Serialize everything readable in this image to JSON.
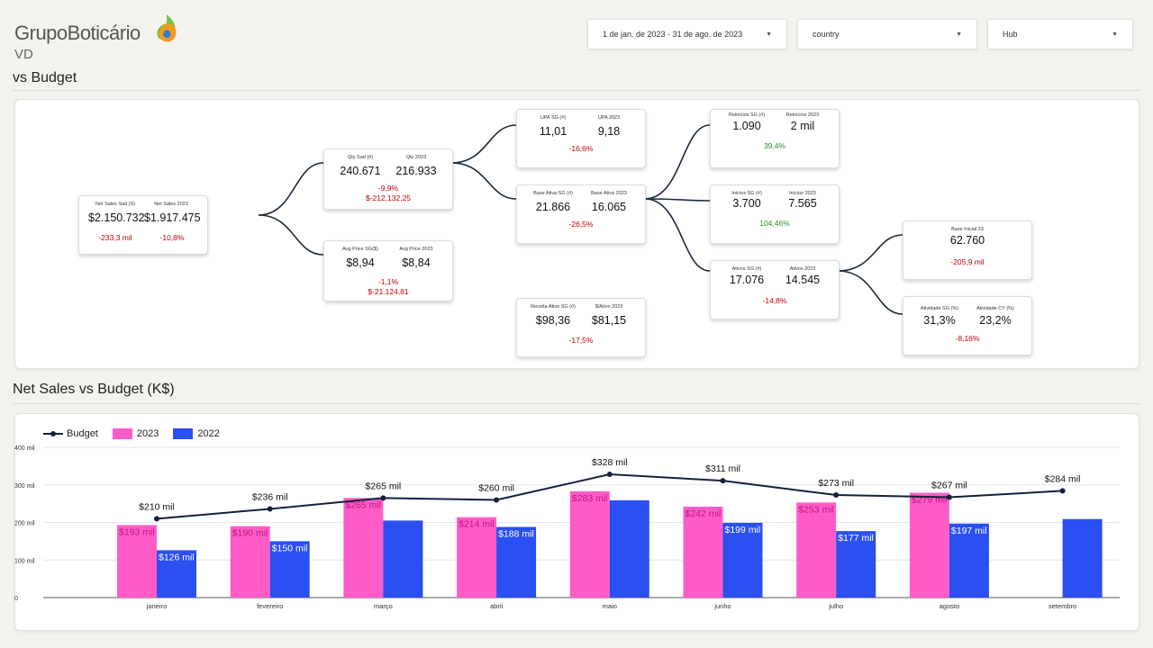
{
  "header": {
    "logo_text": "GrupoBoticário",
    "subtitle": "VD"
  },
  "filters": [
    {
      "label": "1 de jan. de 2023 - 31 de ago. de 2023"
    },
    {
      "label": "country"
    },
    {
      "label": "Hub"
    }
  ],
  "section1": {
    "title": "vs Budget"
  },
  "tree": {
    "net": {
      "l_label": "Net Sales Sad (S)",
      "l_value": "$2.150.732",
      "r_label": "Net Sales 2023",
      "r_value": "$1.917.475",
      "d1": "-233,3 mil",
      "d2": "-10,8%"
    },
    "qty": {
      "l_label": "Qty Sad (#)",
      "l_value": "240.671",
      "r_label": "Qty 2023",
      "r_value": "216.933",
      "d1": "-9,9%",
      "d2": "$-212.132,25"
    },
    "avg": {
      "l_label": "Avg Price SG($)",
      "l_value": "$8,94",
      "r_label": "Avg Price 2023",
      "r_value": "$8,84",
      "d1": "-1,1%",
      "d2": "$-21.124,81"
    },
    "upa": {
      "l_label": "UPA SG (#)",
      "l_value": "11,01",
      "r_label": "UPA 2023",
      "r_value": "9,18",
      "d1": "-16,6%"
    },
    "base": {
      "l_label": "Base Ativa SG (#)",
      "l_value": "21.866",
      "r_label": "Base Ativa 2023",
      "r_value": "16.065",
      "d1": "-26,5%"
    },
    "receita": {
      "l_label": "Receita Ativo SG (#)",
      "l_value": "$98,36",
      "r_label": "$/Ativo 2023",
      "r_value": "$81,15",
      "d1": "-17,5%"
    },
    "reinicios": {
      "l_label": "Reinícios SG (#)",
      "l_value": "1.090",
      "r_label": "Reinícios 2023",
      "r_value": "2 mil",
      "d1": "39,4%"
    },
    "inicios": {
      "l_label": "Inícios SG (#)",
      "l_value": "3.700",
      "r_label": "Inícios 2023",
      "r_value": "7.565",
      "d1": "104,46%"
    },
    "ativos": {
      "l_label": "Ativos SG (#)",
      "l_value": "17.076",
      "r_label": "Ativos 2023",
      "r_value": "14.545",
      "d1": "-14,8%"
    },
    "baseinicial": {
      "label": "Base Inicial 23",
      "value": "62.760",
      "d1": "-205,9 mil"
    },
    "atividade": {
      "l_label": "Atividade SG (%)",
      "l_value": "31,3%",
      "r_label": "Atividade CY (%)",
      "r_value": "23,2%",
      "d1": "-8,16%"
    }
  },
  "section2": {
    "title": "Net Sales vs Budget (K$)"
  },
  "colors": {
    "budget": "#14213d",
    "y2023": "#ff5cc8",
    "y2022": "#2b4ff0",
    "neg": "#c00000",
    "pos": "#2e8b2e"
  },
  "chart_data": {
    "type": "bar",
    "categories": [
      "janeiro",
      "fevereiro",
      "março",
      "abril",
      "maio",
      "junho",
      "julho",
      "agosto",
      "setembro"
    ],
    "series": [
      {
        "name": "Budget",
        "type": "line",
        "values": [
          210,
          236,
          265,
          260,
          328,
          311,
          273,
          267,
          284
        ],
        "labels": [
          "$210 mil",
          "$236 mil",
          "$265 mil",
          "$260 mil",
          "$328 mil",
          "$311 mil",
          "$273 mil",
          "$267 mil",
          "$284 mil"
        ]
      },
      {
        "name": "2023",
        "type": "bar",
        "values": [
          193,
          190,
          265,
          214,
          283,
          242,
          253,
          279,
          null
        ],
        "labels": [
          "$193 mil",
          "$190 mil",
          "$265 mil",
          "$214 mil",
          "$283 mil",
          "$242 mil",
          "$253 mil",
          "$279 mil",
          ""
        ]
      },
      {
        "name": "2022",
        "type": "bar",
        "values": [
          126,
          150,
          205,
          188,
          259,
          199,
          177,
          197,
          209
        ],
        "labels": [
          "$126 mil",
          "$150 mil",
          "$205 mil",
          "$188 mil",
          "$259 mil",
          "$199 mil",
          "$177 mil",
          "$197 mil",
          "$209 mil"
        ]
      }
    ],
    "yticks": [
      "400 mil",
      "300 mil",
      "200 mil",
      "100 mil",
      "0"
    ],
    "ylim": [
      0,
      400
    ],
    "legend": "top-left",
    "grid": true
  }
}
